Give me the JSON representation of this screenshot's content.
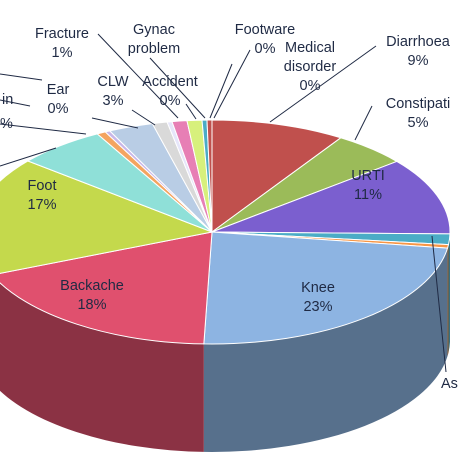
{
  "chart_data": {
    "type": "pie",
    "title": "",
    "style": "3d-exploded",
    "slices": [
      {
        "label": "Diarrhoea",
        "value": 9,
        "value_label": "9%",
        "color": "#c0504d"
      },
      {
        "label": "Constipati",
        "value": 5,
        "value_label": "5%",
        "color": "#9bbb59"
      },
      {
        "label": "URTI",
        "value": 11,
        "value_label": "11%",
        "color": "#7b5fcf"
      },
      {
        "label": "",
        "value": 1.5,
        "value_label": "",
        "color": "#4bacc6"
      },
      {
        "label": "",
        "value": 0.5,
        "value_label": "",
        "color": "#f79646"
      },
      {
        "label": "Knee",
        "value": 23,
        "value_label": "23%",
        "color": "#8db4e2"
      },
      {
        "label": "Backache",
        "value": 18,
        "value_label": "18%",
        "color": "#e0506e"
      },
      {
        "label": "Foot",
        "value": 17,
        "value_label": "17%",
        "color": "#c4d94c"
      },
      {
        "label": "",
        "value": 6,
        "value_label": "",
        "color": "#8fe0d8"
      },
      {
        "label": "",
        "value": 0.6,
        "value_label": "",
        "color": "#f4a460"
      },
      {
        "label": "Ear",
        "value": 0,
        "value_label": "0%",
        "color": "#c8b7e8"
      },
      {
        "label": "CLW",
        "value": 3,
        "value_label": "3%",
        "color": "#b9cde5"
      },
      {
        "label": "Fracture",
        "value": 1,
        "value_label": "1%",
        "color": "#d9d9d9"
      },
      {
        "label": "Accident",
        "value": 0,
        "value_label": "0%",
        "color": "#e6e6fa"
      },
      {
        "label": "Gynac problem",
        "value": 1,
        "value_label": "",
        "color": "#e77fb5"
      },
      {
        "label": "",
        "value": 1,
        "value_label": "",
        "color": "#d7f07c"
      },
      {
        "label": "Footware",
        "value": 0,
        "value_label": "0%",
        "color": "#4bacc6"
      },
      {
        "label": "Medical disorder",
        "value": 0,
        "value_label": "0%",
        "color": "#c0504d"
      }
    ],
    "partial_labels": {
      "left_upper": "in",
      "left_lower": "%",
      "bottom_right": "As"
    }
  }
}
